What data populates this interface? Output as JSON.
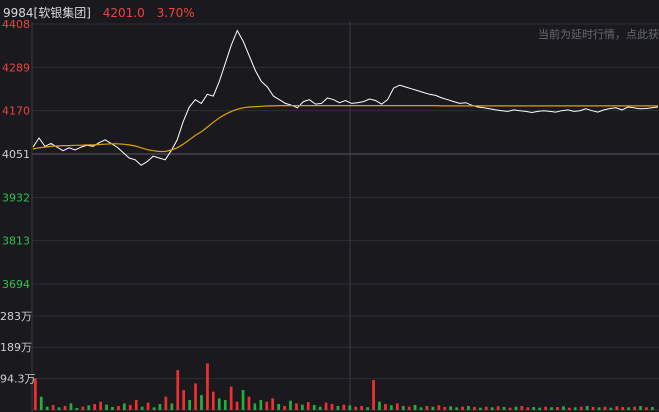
{
  "header": {
    "code_name": "9984[软银集团]",
    "price": "4201.0",
    "change_pct": "3.70%",
    "delay_notice": "当前为延时行情，点此获"
  },
  "colors": {
    "background": "#1a1a1e",
    "up": "#f03030",
    "down": "#20b040",
    "price_line": "#ffffff",
    "avg_line": "#e0a000",
    "grid": "#2c2f36"
  },
  "chart_data": [
    {
      "type": "line",
      "title": "",
      "yticks": [
        "4408",
        "4289",
        "4170",
        "4051",
        "3932",
        "3813",
        "3694"
      ],
      "ylim": [
        3694,
        4408
      ],
      "reference_price": 4051,
      "series": [
        {
          "name": "",
          "role": "price",
          "values": [
            4070,
            4095,
            4072,
            4080,
            4070,
            4060,
            4068,
            4062,
            4070,
            4075,
            4072,
            4082,
            4090,
            4080,
            4070,
            4055,
            4040,
            4035,
            4020,
            4030,
            4045,
            4040,
            4035,
            4060,
            4090,
            4140,
            4180,
            4200,
            4190,
            4215,
            4210,
            4250,
            4300,
            4350,
            4390,
            4360,
            4320,
            4280,
            4250,
            4235,
            4210,
            4200,
            4190,
            4185,
            4178,
            4195,
            4200,
            4188,
            4190,
            4205,
            4200,
            4192,
            4198,
            4190,
            4192,
            4195,
            4202,
            4198,
            4188,
            4200,
            4232,
            4240,
            4235,
            4230,
            4225,
            4220,
            4215,
            4212,
            4205,
            4200,
            4195,
            4190,
            4192,
            4185,
            4180,
            4178,
            4175,
            4172,
            4170,
            4168,
            4172,
            4170,
            4168,
            4165,
            4168,
            4170,
            4168,
            4166,
            4170,
            4172,
            4168,
            4170,
            4175,
            4170,
            4166,
            4172,
            4176,
            4178,
            4172,
            4180,
            4178,
            4175,
            4176,
            4178,
            4180
          ]
        },
        {
          "name": "",
          "role": "average",
          "values": [
            4065,
            4068,
            4070,
            4072,
            4073,
            4074,
            4074,
            4075,
            4075,
            4076,
            4076,
            4077,
            4078,
            4079,
            4079,
            4078,
            4076,
            4073,
            4068,
            4063,
            4060,
            4058,
            4058,
            4062,
            4068,
            4078,
            4090,
            4102,
            4112,
            4125,
            4138,
            4150,
            4160,
            4168,
            4174,
            4178,
            4180,
            4181,
            4182,
            4183,
            4183,
            4184,
            4184,
            4184,
            4184,
            4184,
            4184,
            4184,
            4184,
            4184,
            4184,
            4184,
            4184,
            4184,
            4184,
            4184,
            4184,
            4184,
            4184,
            4184,
            4184,
            4184,
            4184,
            4184,
            4184,
            4184,
            4184,
            4184,
            4183,
            4183,
            4183,
            4183,
            4183,
            4183,
            4183,
            4183,
            4183,
            4183,
            4183,
            4183,
            4183,
            4183,
            4183,
            4183,
            4183,
            4183,
            4183,
            4183,
            4183,
            4183,
            4183,
            4183,
            4183,
            4183,
            4183,
            4183,
            4183,
            4183,
            4183,
            4183,
            4183,
            4183,
            4183,
            4183,
            4183
          ]
        }
      ]
    },
    {
      "type": "bar",
      "title": "",
      "yticks": [
        "283万",
        "189万",
        "94.3万"
      ],
      "ylim": [
        0,
        283
      ],
      "unit": "万",
      "values": [
        95,
        40,
        10,
        15,
        8,
        12,
        20,
        6,
        10,
        14,
        18,
        25,
        16,
        9,
        12,
        20,
        15,
        30,
        10,
        22,
        8,
        18,
        40,
        20,
        120,
        60,
        30,
        80,
        45,
        140,
        55,
        35,
        30,
        70,
        25,
        60,
        40,
        20,
        30,
        25,
        35,
        18,
        12,
        28,
        20,
        16,
        24,
        15,
        10,
        22,
        18,
        12,
        16,
        14,
        10,
        12,
        8,
        90,
        25,
        18,
        14,
        20,
        12,
        10,
        15,
        8,
        12,
        10,
        14,
        9,
        11,
        8,
        10,
        12,
        9,
        7,
        10,
        8,
        11,
        9,
        7,
        10,
        12,
        8,
        9,
        7,
        10,
        8,
        9,
        11,
        7,
        8,
        10,
        12,
        9,
        8,
        10,
        7,
        11,
        9,
        8,
        10,
        12,
        8,
        9
      ],
      "directions": [
        "u",
        "d",
        "d",
        "u",
        "d",
        "u",
        "d",
        "d",
        "u",
        "d",
        "u",
        "u",
        "d",
        "d",
        "u",
        "d",
        "u",
        "u",
        "d",
        "u",
        "d",
        "d",
        "u",
        "d",
        "u",
        "u",
        "d",
        "u",
        "d",
        "u",
        "u",
        "d",
        "d",
        "u",
        "u",
        "d",
        "u",
        "d",
        "d",
        "u",
        "u",
        "d",
        "u",
        "d",
        "u",
        "d",
        "u",
        "d",
        "d",
        "u",
        "u",
        "d",
        "u",
        "d",
        "u",
        "u",
        "d",
        "u",
        "d",
        "u",
        "d",
        "u",
        "d",
        "u",
        "d",
        "d",
        "u",
        "d",
        "u",
        "u",
        "d",
        "d",
        "u",
        "d",
        "u",
        "d",
        "u",
        "d",
        "u",
        "d",
        "u",
        "d",
        "u",
        "u",
        "d",
        "d",
        "u",
        "d",
        "u",
        "d",
        "u",
        "d",
        "u",
        "d",
        "u",
        "d",
        "u",
        "d",
        "u",
        "u",
        "d",
        "u",
        "d",
        "u",
        "d"
      ]
    }
  ]
}
